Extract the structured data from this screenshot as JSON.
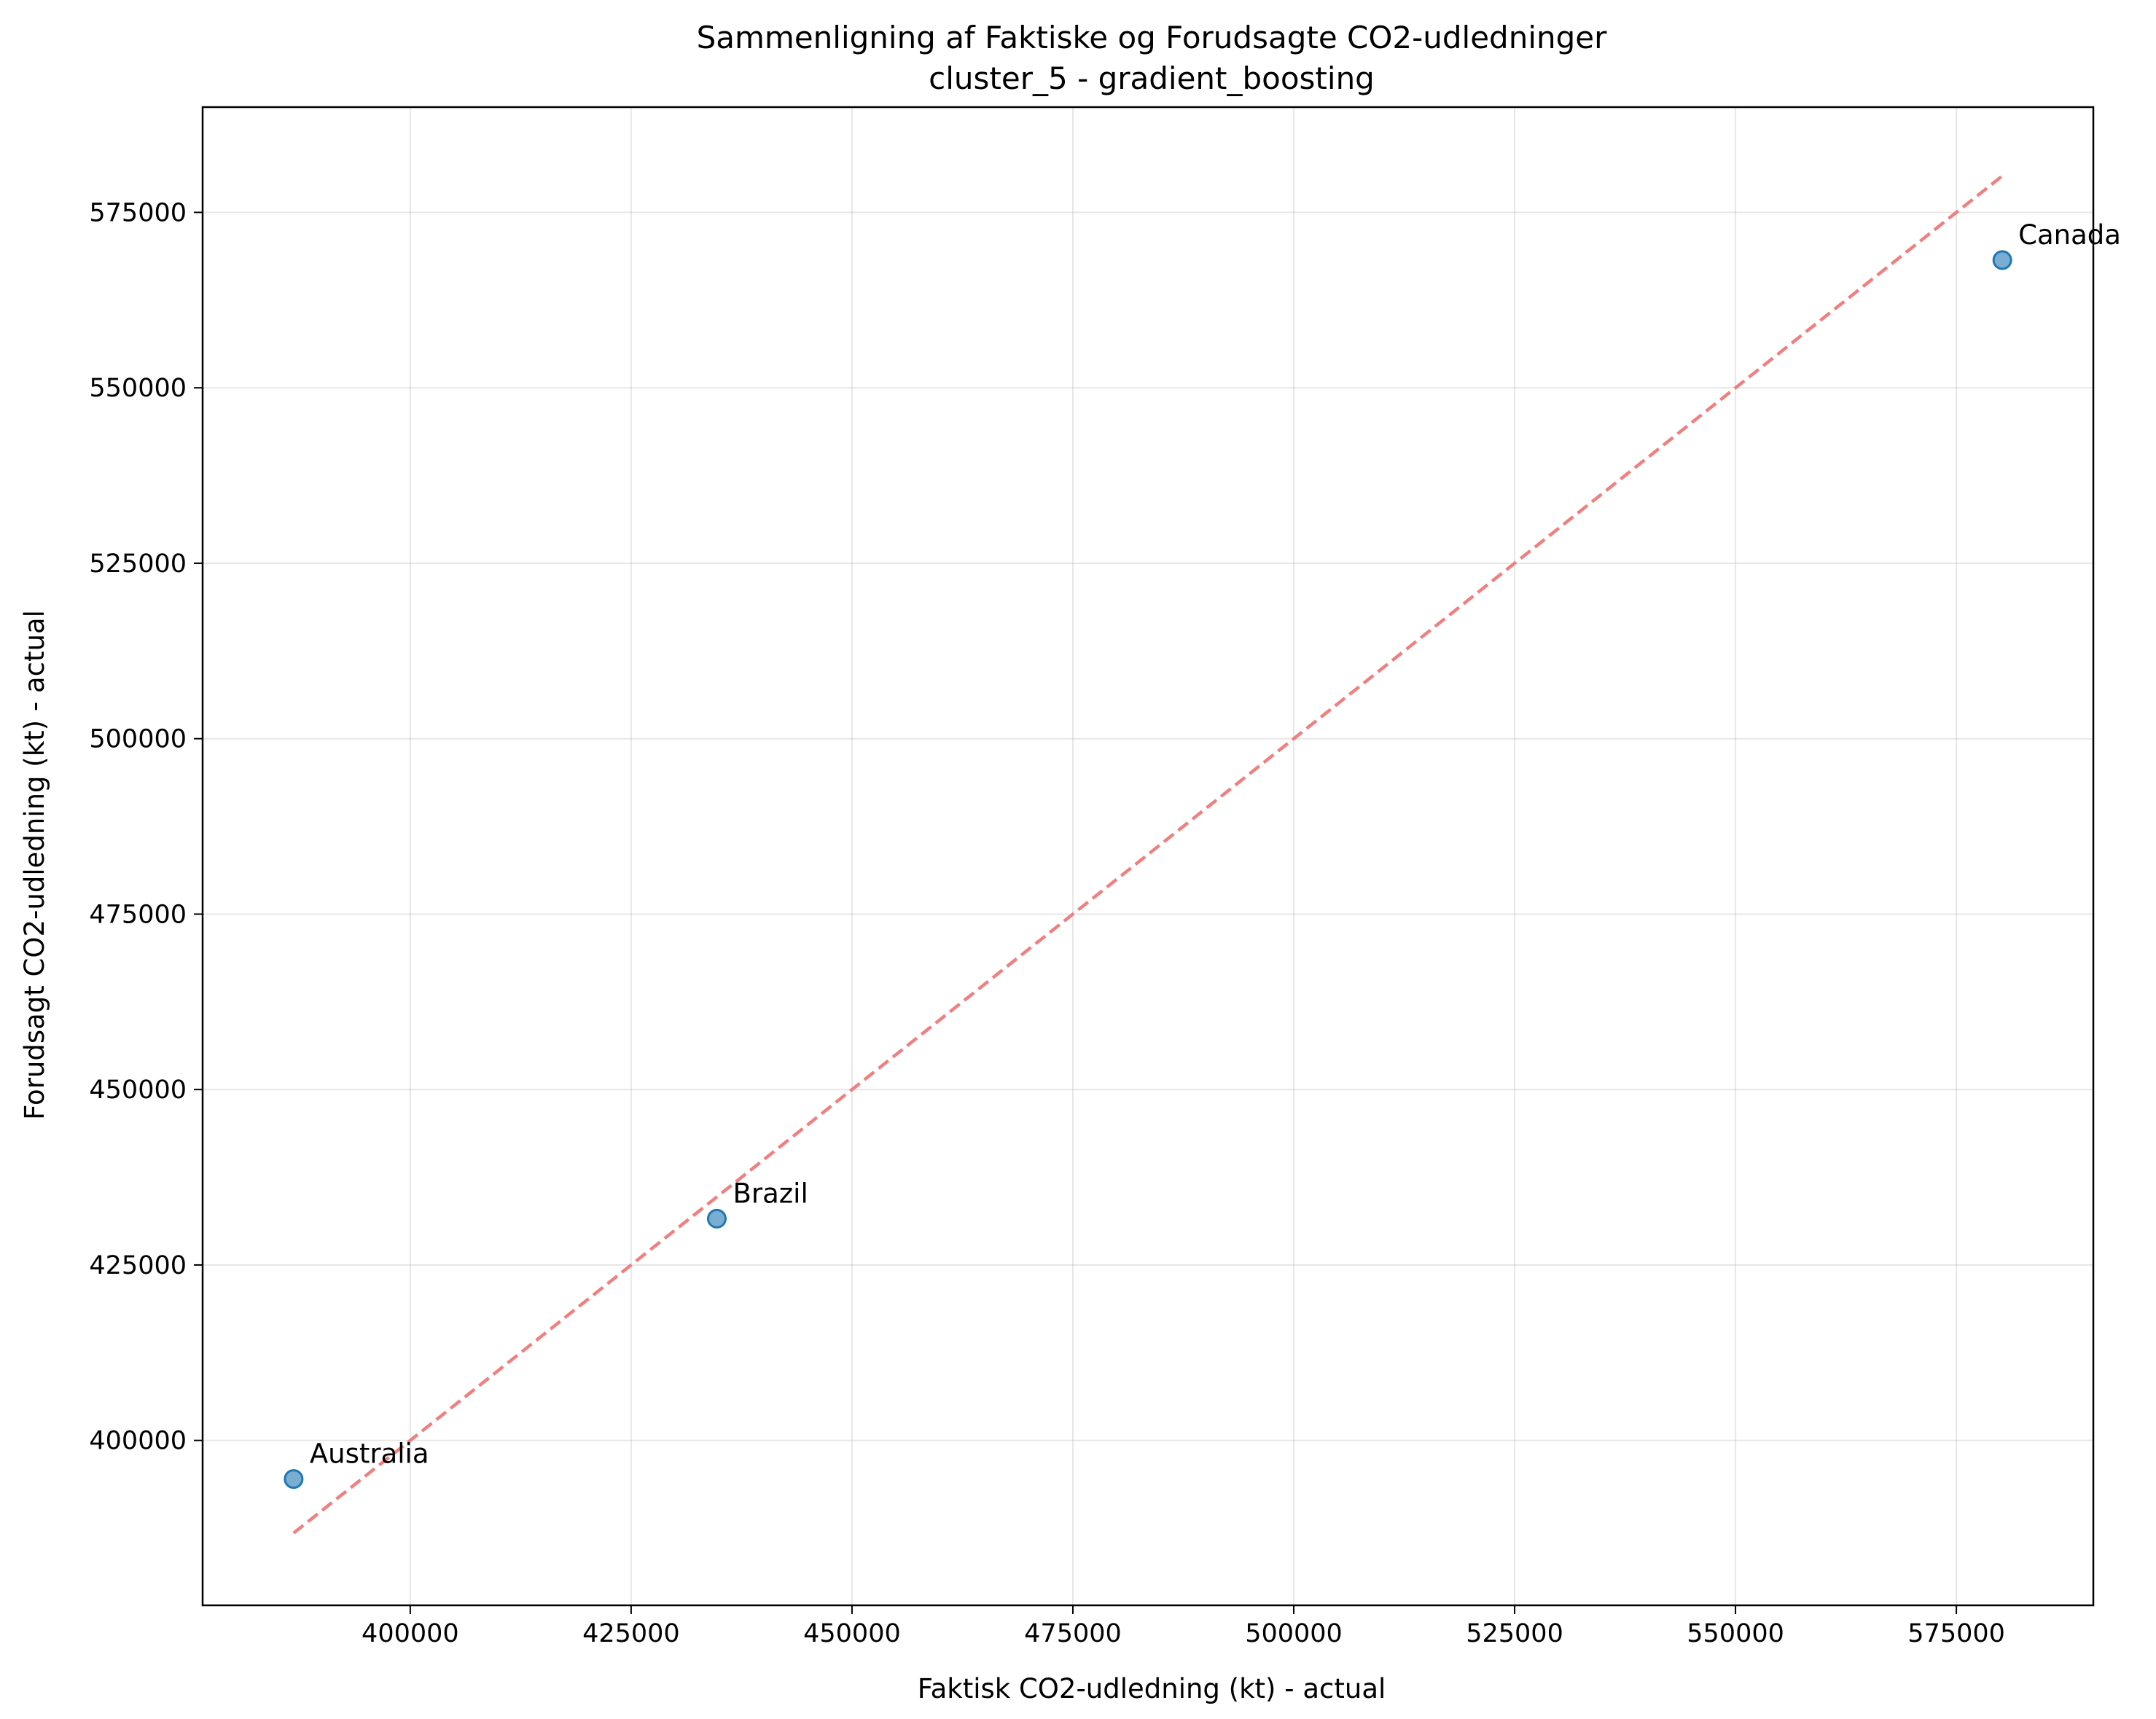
{
  "chart_data": {
    "type": "scatter",
    "title": "Sammenligning af Faktiske og Forudsagte CO2-udledninger",
    "subtitle": "cluster_5 - gradient_boosting",
    "xlabel": "Faktisk CO2-udledning (kt) - actual",
    "ylabel": "Forudsagt CO2-udledning (kt) - actual",
    "xlim": [
      376500,
      590500
    ],
    "ylim": [
      376500,
      590000
    ],
    "xticks": [
      400000,
      425000,
      450000,
      475000,
      500000,
      525000,
      550000,
      575000
    ],
    "yticks": [
      400000,
      425000,
      450000,
      475000,
      500000,
      525000,
      550000,
      575000
    ],
    "grid": true,
    "points": [
      {
        "label": "Australia",
        "x": 386800,
        "y": 394500
      },
      {
        "label": "Brazil",
        "x": 434700,
        "y": 431600
      },
      {
        "label": "Canada",
        "x": 580200,
        "y": 568200
      }
    ],
    "reference_line": {
      "style": "dashed",
      "color": "#f08080",
      "from": [
        386800,
        386800
      ],
      "to": [
        580200,
        580200
      ]
    },
    "point_color": "#1f77b4"
  }
}
